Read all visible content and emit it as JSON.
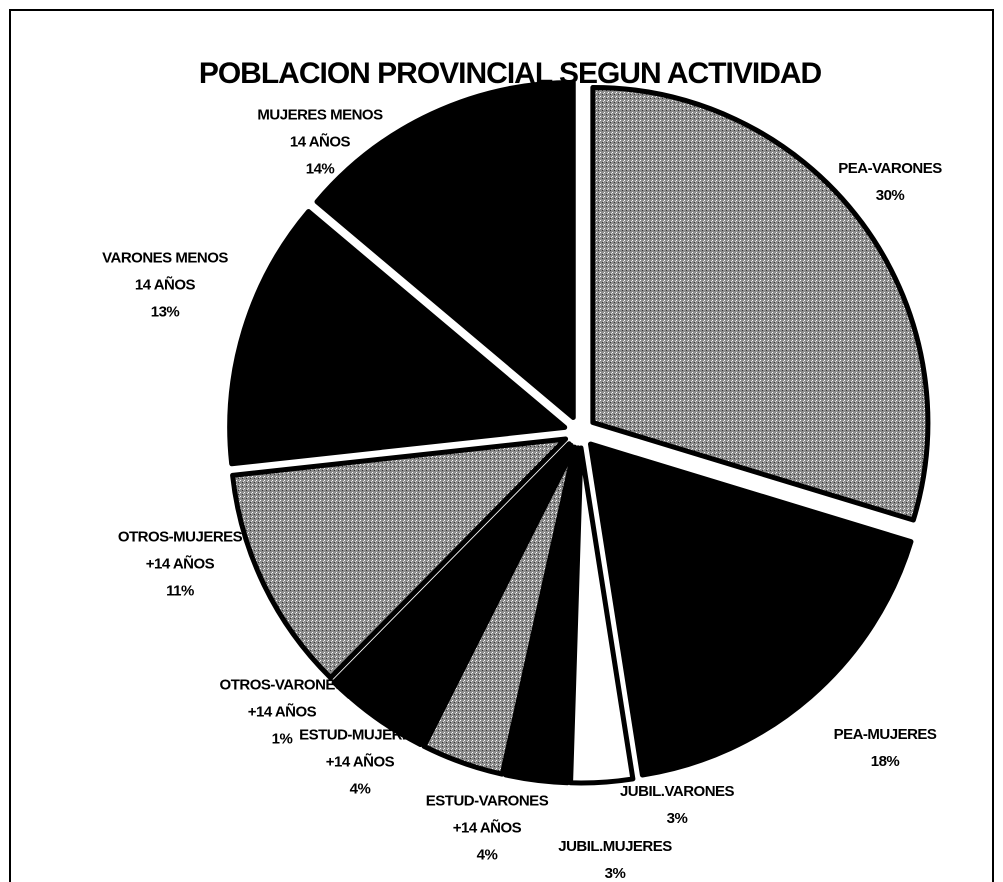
{
  "chart_data": {
    "type": "pie",
    "title": "POBLACION PROVINCIAL SEGUN ACTIVIDAD",
    "categories": [
      "PEA-VARONES",
      "PEA-MUJERES",
      "JUBIL.VARONES",
      "JUBIL.MUJERES",
      "ESTUD-VARONES\n+14 AÑOS",
      "ESTUD-MUJERES\n+14 AÑOS",
      "OTROS-VARONES\n+14 AÑOS",
      "OTROS-MUJERES\n+14 AÑOS",
      "VARONES MENOS\n14 AÑOS",
      "MUJERES MENOS\n14 AÑOS"
    ],
    "values": [
      30,
      18,
      3,
      3,
      4,
      4,
      1,
      11,
      13,
      14
    ],
    "value_labels": [
      "30%",
      "18%",
      "3%",
      "3%",
      "4%",
      "4%",
      "1%",
      "11%",
      "13%",
      "14%"
    ],
    "colors": [
      "#9a9a9a",
      "#000000",
      "#ffffff",
      "#000000",
      "#9a9a9a",
      "#000000",
      "#000000",
      "#9a9a9a",
      "#000000",
      "#000000"
    ]
  }
}
